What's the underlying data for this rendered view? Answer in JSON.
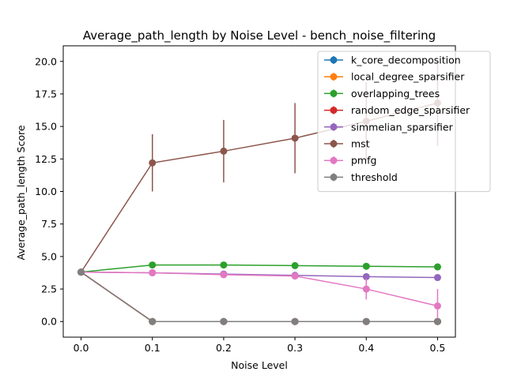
{
  "chart_data": {
    "type": "line",
    "title": "Average_path_length by Noise Level - bench_noise_filtering",
    "xlabel": "Noise Level",
    "ylabel": "Average_path_length Score",
    "x": [
      0.0,
      0.1,
      0.2,
      0.3,
      0.4,
      0.5
    ],
    "x_ticks": [
      "0.0",
      "0.1",
      "0.2",
      "0.3",
      "0.4",
      "0.5"
    ],
    "y_ticks": [
      "0.0",
      "2.5",
      "5.0",
      "7.5",
      "10.0",
      "12.5",
      "15.0",
      "17.5",
      "20.0"
    ],
    "xlim": [
      -0.025,
      0.525
    ],
    "ylim": [
      -1.2,
      21.2
    ],
    "grid": false,
    "legend_position": "top-right",
    "series": [
      {
        "name": "k_core_decomposition",
        "color": "#1f77b4",
        "values": [
          3.8,
          0.0,
          0.0,
          0.0,
          0.0,
          0.0
        ],
        "errors": [
          0,
          0,
          0,
          0,
          0,
          0
        ]
      },
      {
        "name": "local_degree_sparsifier",
        "color": "#ff7f0e",
        "values": [
          3.8,
          0.0,
          0.0,
          0.0,
          0.0,
          0.0
        ],
        "errors": [
          0,
          0,
          0,
          0,
          0,
          0
        ]
      },
      {
        "name": "overlapping_trees",
        "color": "#2ca02c",
        "values": [
          3.8,
          4.35,
          4.35,
          4.3,
          4.25,
          4.2
        ],
        "errors": [
          0,
          0.2,
          0.2,
          0.25,
          0.25,
          0.2
        ]
      },
      {
        "name": "random_edge_sparsifier",
        "color": "#d62728",
        "values": [
          3.8,
          0.0,
          0.0,
          0.0,
          0.0,
          0.0
        ],
        "errors": [
          0,
          0,
          0,
          0,
          0,
          0
        ]
      },
      {
        "name": "simmelian_sparsifier",
        "color": "#9467bd",
        "values": [
          3.8,
          3.75,
          3.65,
          3.55,
          3.45,
          3.38
        ],
        "errors": [
          0,
          0.1,
          0.1,
          0.1,
          0.1,
          0.1
        ]
      },
      {
        "name": "mst",
        "color": "#8c564b",
        "values": [
          3.8,
          12.2,
          13.1,
          14.1,
          15.4,
          16.8
        ],
        "errors": [
          0,
          2.2,
          2.4,
          2.7,
          3.0,
          3.3
        ]
      },
      {
        "name": "pmfg",
        "color": "#e377c2",
        "values": [
          3.8,
          3.75,
          3.6,
          3.5,
          2.5,
          1.2
        ],
        "errors": [
          0,
          0.1,
          0.15,
          0.2,
          0.8,
          1.3
        ]
      },
      {
        "name": "threshold",
        "color": "#7f7f7f",
        "values": [
          3.8,
          0.0,
          0.0,
          0.0,
          0.0,
          0.0
        ],
        "errors": [
          0,
          0,
          0,
          0,
          0,
          0
        ]
      }
    ]
  }
}
